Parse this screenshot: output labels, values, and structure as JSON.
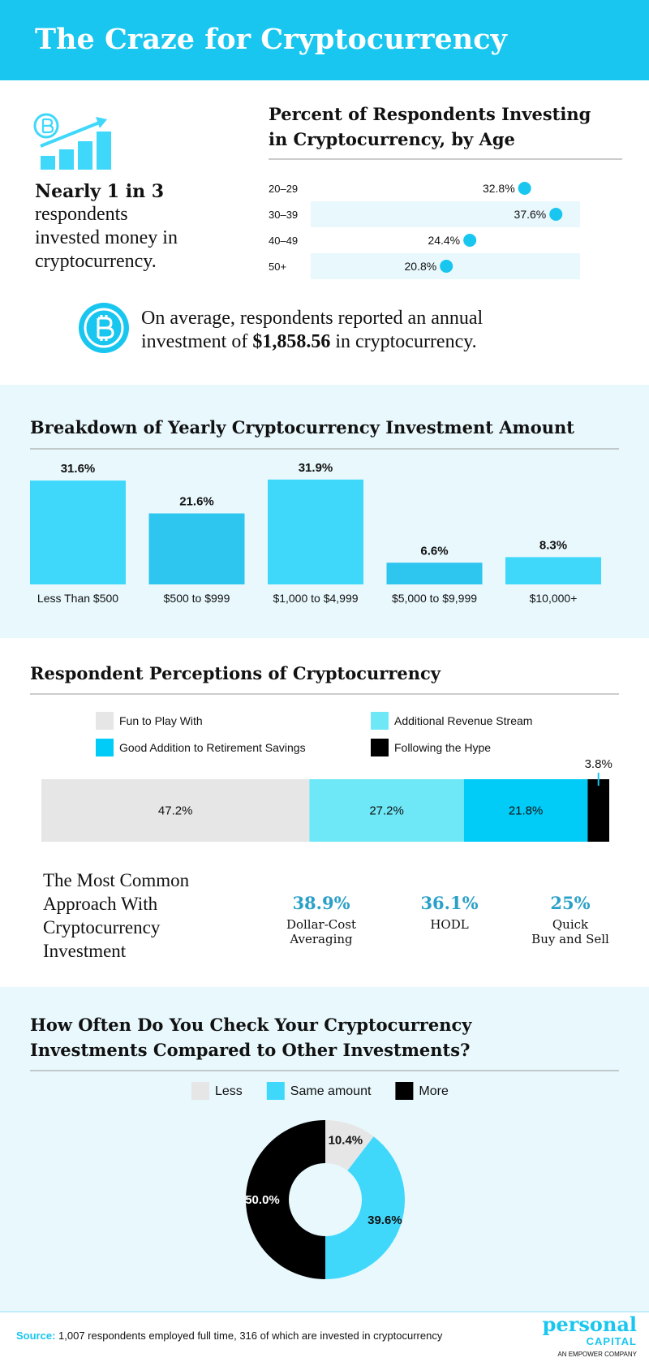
{
  "title": "The Craze for Cryptocurrency",
  "highlight": {
    "bold": "Nearly 1 in 3",
    "lines": [
      "respondents",
      "invested money in",
      "cryptocurrency."
    ]
  },
  "average": {
    "line1": "On average, respondents reported an annual",
    "before": "investment of",
    "amount": "$1,858.56",
    "after": "in cryptocurrency."
  },
  "chart_data": [
    {
      "type": "dot",
      "title": [
        "Percent of Respondents Investing",
        "in Cryptocurrency, by Age"
      ],
      "categories": [
        "20–29",
        "30–39",
        "40–49",
        "50+"
      ],
      "values": [
        32.8,
        37.6,
        24.4,
        20.8
      ],
      "value_labels": [
        "32.8%",
        "37.6%",
        "24.4%",
        "20.8%"
      ],
      "color": "#19c6ef",
      "xlim": [
        0,
        41.3
      ]
    },
    {
      "type": "bar",
      "title": [
        "Breakdown of Yearly Cryptocurrency Investment Amount"
      ],
      "categories": [
        "Less Than $500",
        "$500 to $999",
        "$1,000 to $4,999",
        "$5,000 to $9,999",
        "$10,000+"
      ],
      "values": [
        31.6,
        21.6,
        31.9,
        6.6,
        8.3
      ],
      "value_labels": [
        "31.6%",
        "21.6%",
        "31.9%",
        "6.6%",
        "8.3%"
      ],
      "colors": [
        "#3fd8fb",
        "#2ec5ef",
        "#3fd8fb",
        "#2ec5ef",
        "#3fd8fb"
      ],
      "ylim": [
        0,
        40
      ]
    },
    {
      "type": "stacked_bar",
      "title": [
        "Respondent Perceptions of Cryptocurrency"
      ],
      "xlim": [
        0,
        100
      ],
      "series": [
        {
          "name": "Fun to Play With",
          "color": "#e6e6e6",
          "values": [
            47.2
          ],
          "value_labels": [
            "47.2%"
          ]
        },
        {
          "name": "Additional Revenue Stream",
          "color": "#6ee8f7",
          "values": [
            27.2
          ],
          "value_labels": [
            "27.2%"
          ]
        },
        {
          "name": "Good Addition to Retirement Savings",
          "color": "#00ccf7",
          "values": [
            21.8
          ],
          "value_labels": [
            "21.8%"
          ]
        },
        {
          "name": "Following the Hype",
          "color": "#000000",
          "values": [
            3.8
          ],
          "value_labels": [
            "3.8%"
          ]
        }
      ]
    },
    {
      "type": "pie",
      "donut": true,
      "title": [
        "How Often Do You Check Your Cryptocurrency",
        "Investments Compared to Other Investments?"
      ],
      "categories": [
        "Less",
        "Same amount",
        "More"
      ],
      "values": [
        10.4,
        39.6,
        50.0
      ],
      "value_labels": [
        "10.4%",
        "39.6%",
        "50.0%"
      ],
      "colors": [
        "#e6e6e6",
        "#3fd8fb",
        "#000000"
      ]
    }
  ],
  "approach": {
    "title": [
      "The Most Common",
      "Approach With",
      "Cryptocurrency",
      "Investment"
    ],
    "values": [
      38.9,
      36.1,
      25
    ],
    "value_labels": [
      "38.9%",
      "36.1%",
      "25%"
    ],
    "categories": [
      [
        "Dollar-Cost",
        "Averaging"
      ],
      [
        "HODL"
      ],
      [
        "Quick",
        "Buy and Sell"
      ]
    ]
  },
  "source": {
    "label": "Source:",
    "text": "1,007 respondents employed full time, 316 of which are invested in cryptocurrency"
  },
  "logo": {
    "name": "personal",
    "sub": "CAPITAL",
    "tagline": "AN EMPOWER COMPANY"
  }
}
